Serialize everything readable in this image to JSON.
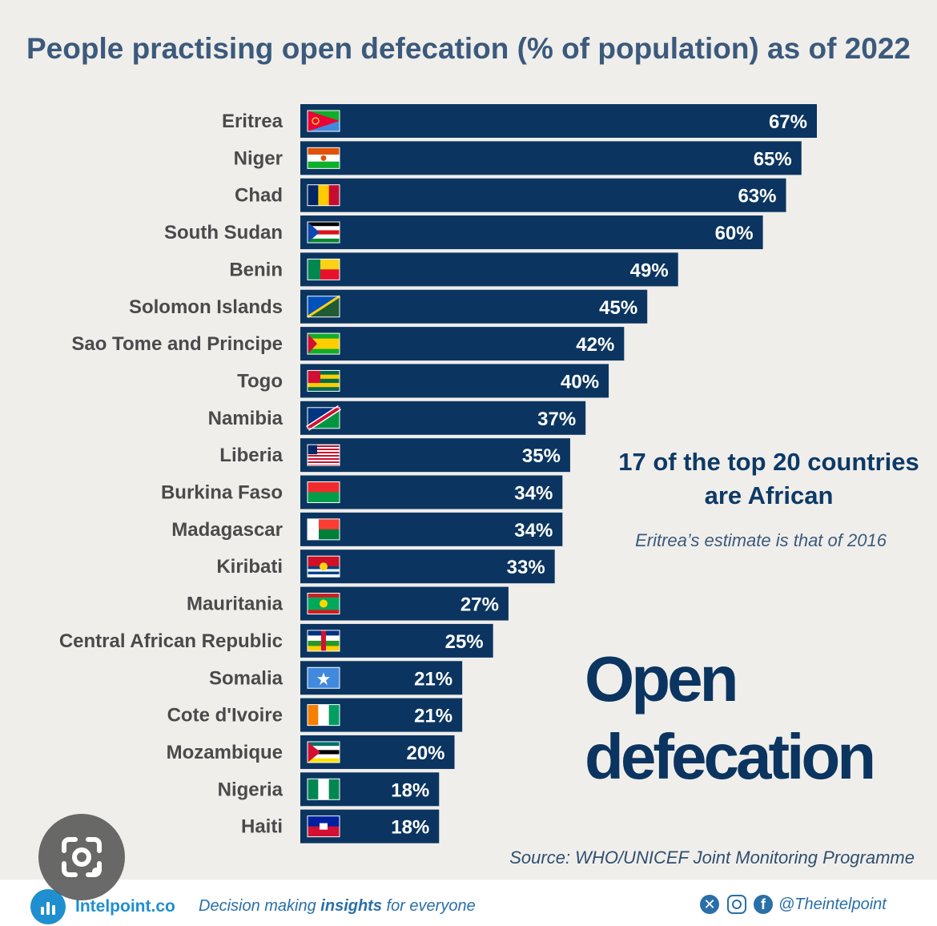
{
  "chart_data": {
    "type": "bar",
    "orientation": "horizontal",
    "title": "People practising open defecation (% of population) as of 2022",
    "categories": [
      "Eritrea",
      "Niger",
      "Chad",
      "South Sudan",
      "Benin",
      "Solomon Islands",
      "Sao Tome and Principe",
      "Togo",
      "Namibia",
      "Liberia",
      "Burkina Faso",
      "Madagascar",
      "Kiribati",
      "Mauritania",
      "Central African Republic",
      "Somalia",
      "Cote d'Ivoire",
      "Mozambique",
      "Nigeria",
      "Haiti"
    ],
    "values": [
      67,
      65,
      63,
      60,
      49,
      45,
      42,
      40,
      37,
      35,
      34,
      34,
      33,
      27,
      25,
      21,
      21,
      20,
      18,
      18
    ],
    "value_labels": [
      "67%",
      "65%",
      "63%",
      "60%",
      "49%",
      "45%",
      "42%",
      "40%",
      "37%",
      "35%",
      "34%",
      "34%",
      "33%",
      "27%",
      "25%",
      "21%",
      "21%",
      "20%",
      "18%",
      "18%"
    ],
    "flags": [
      "eritrea-flag",
      "niger-flag",
      "chad-flag",
      "south-sudan-flag",
      "benin-flag",
      "solomon-islands-flag",
      "sao-tome-flag",
      "togo-flag",
      "namibia-flag",
      "liberia-flag",
      "burkina-faso-flag",
      "madagascar-flag",
      "kiribati-flag",
      "mauritania-flag",
      "car-flag",
      "somalia-flag",
      "cote-divoire-flag",
      "mozambique-flag",
      "nigeria-flag",
      "haiti-flag"
    ],
    "xlim": [
      0,
      67
    ],
    "grid": false,
    "legend": "none",
    "bar_color": "#0b3560"
  },
  "annotations": {
    "heading": "17 of the top 20 countries are African",
    "footnote": "Eritrea’s estimate is that of 2016",
    "big_word_1": "Open",
    "big_word_2": "defecation",
    "source": "Source: WHO/UNICEF Joint Monitoring Programme"
  },
  "footer": {
    "brand": "Intelpoint.co",
    "tagline_pre": "Decision making ",
    "tagline_bold": "insights",
    "tagline_post": " for everyone",
    "handle": "@Theintelpoint",
    "icons": [
      "x-icon",
      "instagram-icon",
      "facebook-icon"
    ]
  },
  "colors": {
    "background": "#f0eeeb",
    "title": "#3b5a7c",
    "bar": "#0b3560",
    "accent": "#1f8fd0"
  }
}
